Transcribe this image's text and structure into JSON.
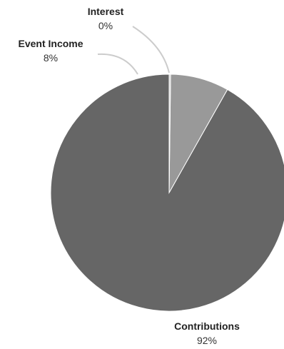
{
  "chart_data": {
    "type": "pie",
    "categories": [
      "Contributions",
      "Event Income",
      "Interest"
    ],
    "values": [
      92,
      8,
      0.2
    ],
    "labels": [
      "92%",
      "8%",
      "0%"
    ],
    "colors": [
      "#666666",
      "#999999",
      "#cccccc"
    ],
    "leader_color": "#cccccc",
    "slice_border_color": "#ffffff"
  }
}
